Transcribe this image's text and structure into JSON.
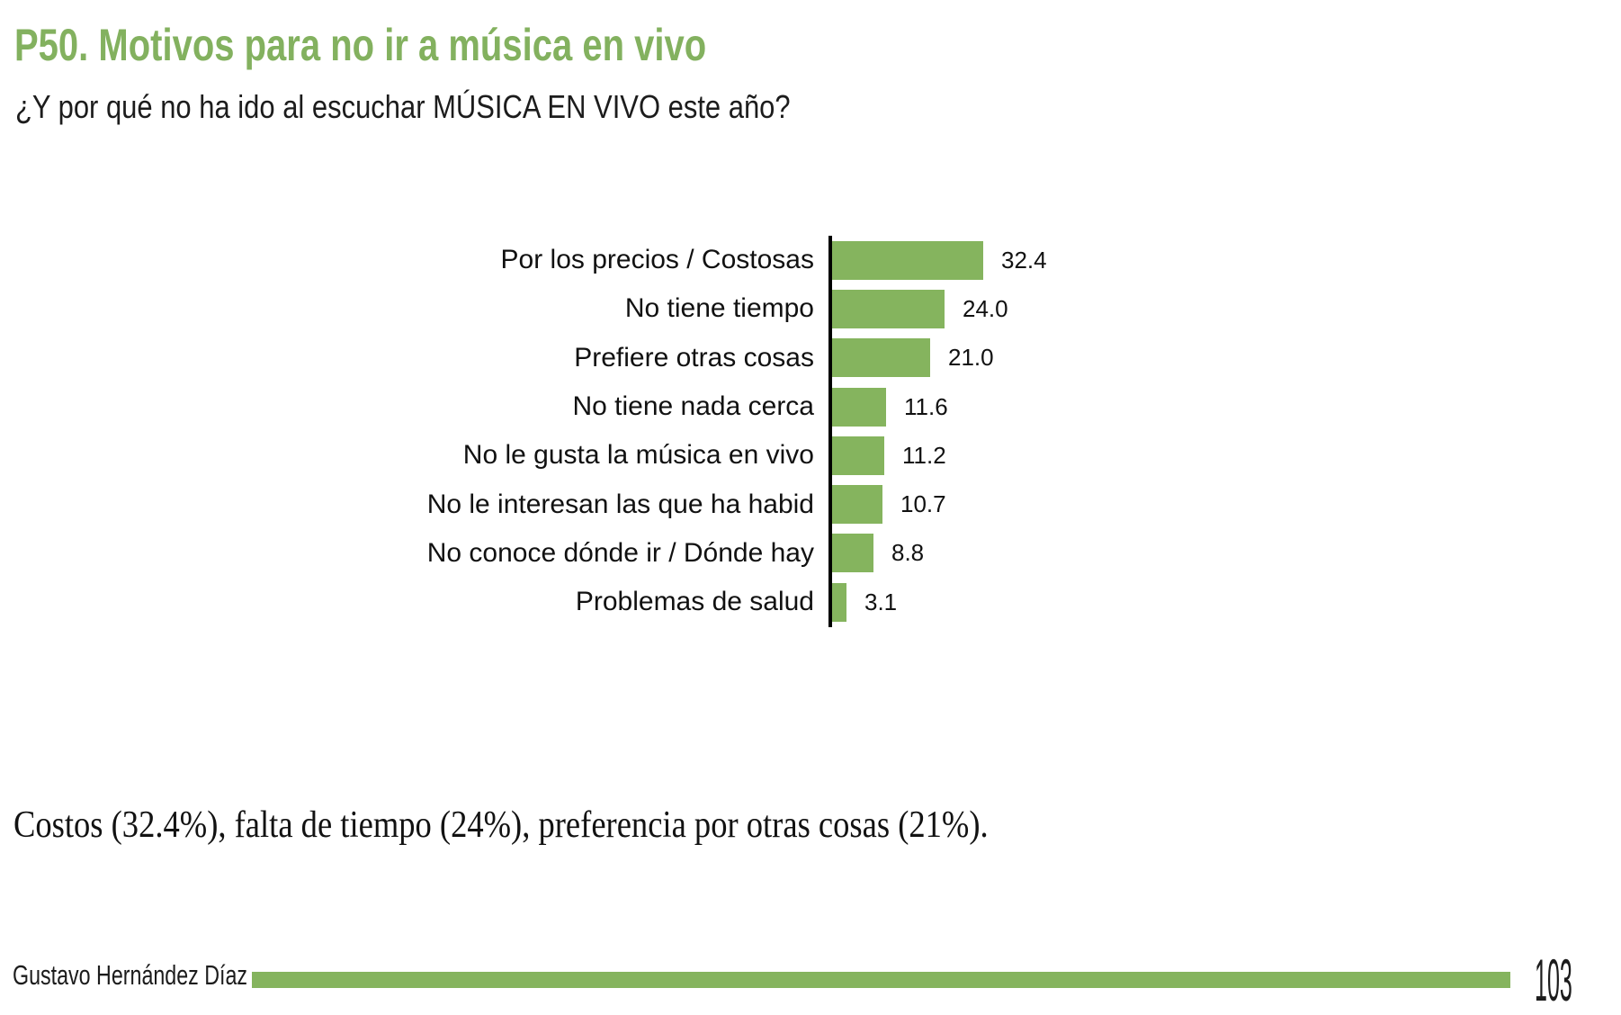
{
  "page": {
    "title": "P50. Motivos para no ir a música en vivo",
    "subtitle": "¿Y por qué no ha ido al escuchar MÚSICA EN VIVO este año?"
  },
  "chart_data": {
    "type": "bar",
    "orientation": "horizontal",
    "categories": [
      "Por los precios / Costosas",
      "No tiene tiempo",
      "Prefiere otras cosas",
      "No tiene nada cerca",
      "No le gusta la música en vivo",
      "No le interesan las que ha habid",
      "No conoce dónde ir / Dónde hay",
      "Problemas de salud"
    ],
    "values": [
      32.4,
      24.0,
      21.0,
      11.6,
      11.2,
      10.7,
      8.8,
      3.1
    ],
    "value_labels": [
      "32.4",
      "24.0",
      "21.0",
      "11.6",
      "11.2",
      "10.7",
      "8.8",
      "3.1"
    ],
    "xlim": [
      0,
      40
    ],
    "grid": false,
    "legend": false,
    "bar_color": "#85b45e",
    "axis_color": "#000000"
  },
  "summary": "Costos (32.4%), falta de tiempo (24%), preferencia por otras cosas (21%).",
  "footer": {
    "author": "Gustavo Hernández Díaz",
    "page_number": "103",
    "rule_color": "#85b45e"
  },
  "colors": {
    "title_green": "#83b15f"
  }
}
